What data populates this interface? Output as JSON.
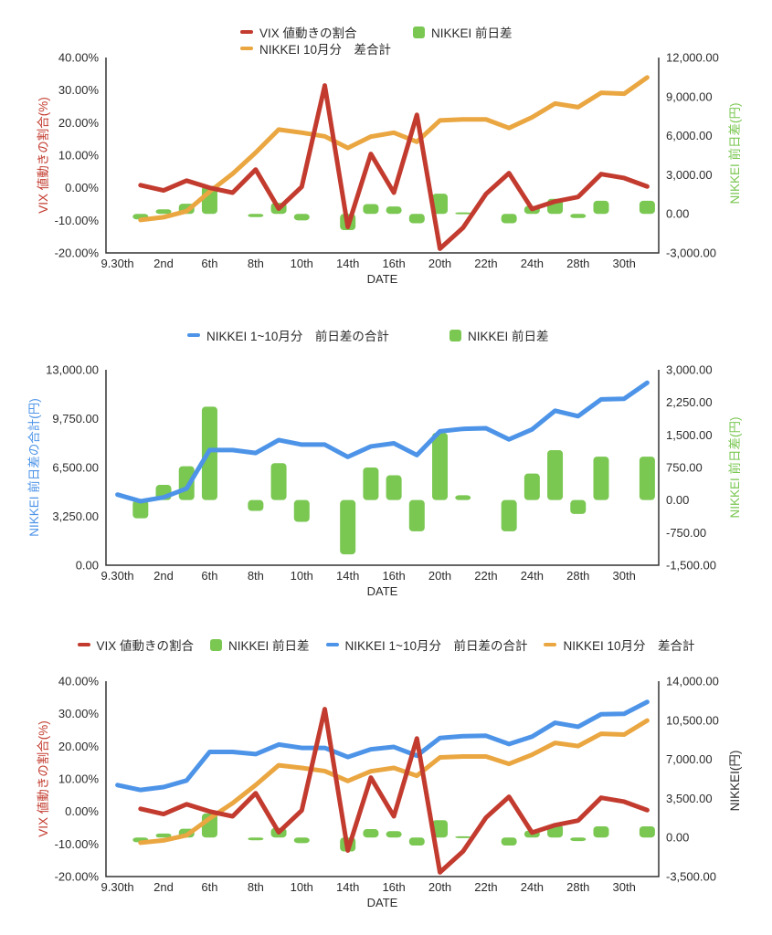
{
  "page": {
    "background": "#ffffff"
  },
  "colors": {
    "red": "#c23b2e",
    "orange": "#eaa640",
    "green": "#7ac752",
    "blue": "#4d94e8",
    "axis": "#333333",
    "text": "#2b2b2b"
  },
  "series_values": {
    "vix_pct": [
      null,
      0.8,
      -0.8,
      2.2,
      0,
      -1.5,
      5.6,
      -6.4,
      0.3,
      31.4,
      -12,
      10.4,
      -1.5,
      22.4,
      -18.7,
      -12.3,
      -1.9,
      4.5,
      -6.5,
      -4.2,
      -2.8,
      4.2,
      3,
      0.4
    ],
    "nikkei_daily_diff": [
      null,
      -420,
      350,
      780,
      2150,
      null,
      -250,
      850,
      -500,
      null,
      -1250,
      750,
      570,
      -720,
      1550,
      110,
      null,
      -720,
      610,
      1150,
      -320,
      1000,
      null,
      1000
    ],
    "nikkei_oct_cum": [
      null,
      -470,
      -260,
      200,
      1700,
      3080,
      4700,
      6470,
      6230,
      5950,
      5060,
      5930,
      6230,
      5530,
      7170,
      7250,
      7250,
      6590,
      7410,
      8470,
      8190,
      9290,
      9220,
      10470
    ],
    "nikkei_jan_oct_cum": [
      4695,
      4255,
      4515,
      5100,
      7660,
      7660,
      7465,
      8325,
      8025,
      8025,
      7205,
      7900,
      8110,
      7325,
      8910,
      9070,
      9110,
      8370,
      9030,
      10275,
      9915,
      11035,
      11075,
      12140
    ]
  },
  "chart_data": [
    {
      "type": "bar+line combo",
      "n_points": 24,
      "x_axis_title": "DATE",
      "x_labels": [
        "9.30th",
        "2nd",
        "6th",
        "8th",
        "10th",
        "14th",
        "16th",
        "20th",
        "22th",
        "24th",
        "28th",
        "30th"
      ],
      "x_label_every": 2,
      "plot": {
        "l": 116,
        "t": 63,
        "r": 721,
        "b": 277
      },
      "left_axis": {
        "label": "VIX 値動きの割合(%)",
        "color_key": "red",
        "max": 40,
        "min": -20,
        "ticks": [
          {
            "v": 40,
            "t": "40.00%"
          },
          {
            "v": 30,
            "t": "30.00%"
          },
          {
            "v": 20,
            "t": "20.00%"
          },
          {
            "v": 10,
            "t": "10.00%"
          },
          {
            "v": 0,
            "t": "0.00%"
          },
          {
            "v": -10,
            "t": "-10.00%"
          },
          {
            "v": -20,
            "t": "-20.00%"
          }
        ]
      },
      "right_axis": {
        "label": "NIKKEI 前日差(円)",
        "color_key": "green",
        "max": 12000,
        "min": -3000,
        "ticks": [
          {
            "v": 12000,
            "t": "12,000.00"
          },
          {
            "v": 9000,
            "t": "9,000.00"
          },
          {
            "v": 6000,
            "t": "6,000.00"
          },
          {
            "v": 3000,
            "t": "3,000.00"
          },
          {
            "v": 0,
            "t": "0.00"
          },
          {
            "v": -3000,
            "t": "-3,000.00"
          }
        ]
      },
      "series": [
        {
          "name": "NIKKEI 前日差",
          "type": "bar",
          "color": "green",
          "axis": "right",
          "values_key": "nikkei_daily_diff"
        },
        {
          "name": "NIKKEI 10月分　差合計",
          "type": "line",
          "color": "orange",
          "axis": "right",
          "values_key": "nikkei_oct_cum"
        },
        {
          "name": "VIX 値動きの割合",
          "type": "line",
          "color": "red",
          "axis": "left",
          "values_key": "vix_pct"
        }
      ]
    },
    {
      "type": "bar+line combo",
      "n_points": 24,
      "x_axis_title": "DATE",
      "x_labels": [
        "9.30th",
        "2nd",
        "6th",
        "8th",
        "10th",
        "14th",
        "16th",
        "20th",
        "22th",
        "24th",
        "28th",
        "30th"
      ],
      "x_label_every": 2,
      "plot": {
        "l": 116,
        "t": 405,
        "r": 721,
        "b": 619
      },
      "left_axis": {
        "label": "NIKKEI 前日差の合計(円)",
        "color_key": "blue",
        "max": 13000,
        "min": 0,
        "ticks": [
          {
            "v": 13000,
            "t": "13,000.00"
          },
          {
            "v": 9750,
            "t": "9,750.00"
          },
          {
            "v": 6500,
            "t": "6,500.00"
          },
          {
            "v": 3250,
            "t": "3,250.00"
          },
          {
            "v": 0,
            "t": "0.00"
          }
        ]
      },
      "right_axis": {
        "label": "NIKKEI 前日差(円)",
        "color_key": "green",
        "max": 3000,
        "min": -1500,
        "ticks": [
          {
            "v": 3000,
            "t": "3,000.00"
          },
          {
            "v": 2250,
            "t": "2,250.00"
          },
          {
            "v": 1500,
            "t": "1,500.00"
          },
          {
            "v": 750,
            "t": "750.00"
          },
          {
            "v": 0,
            "t": "0.00"
          },
          {
            "v": -750,
            "t": "-750.00"
          },
          {
            "v": -1500,
            "t": "-1,500.00"
          }
        ]
      },
      "series": [
        {
          "name": "NIKKEI 前日差",
          "type": "bar",
          "color": "green",
          "axis": "right",
          "values_key": "nikkei_daily_diff"
        },
        {
          "name": "NIKKEI 1~10月分　前日差の合計",
          "type": "line",
          "color": "blue",
          "axis": "left",
          "values_key": "nikkei_jan_oct_cum"
        }
      ]
    },
    {
      "type": "bar+line combo",
      "n_points": 24,
      "x_axis_title": "DATE",
      "x_labels": [
        "9.30th",
        "2nd",
        "6th",
        "8th",
        "10th",
        "14th",
        "16th",
        "20th",
        "22th",
        "24th",
        "28th",
        "30th"
      ],
      "x_label_every": 2,
      "plot": {
        "l": 116,
        "t": 746,
        "r": 721,
        "b": 960
      },
      "left_axis": {
        "label": "VIX 値動きの割合(%)",
        "color_key": "red",
        "max": 40,
        "min": -20,
        "ticks": [
          {
            "v": 40,
            "t": "40.00%"
          },
          {
            "v": 30,
            "t": "30.00%"
          },
          {
            "v": 20,
            "t": "20.00%"
          },
          {
            "v": 10,
            "t": "10.00%"
          },
          {
            "v": 0,
            "t": "0.00%"
          },
          {
            "v": -10,
            "t": "-10.00%"
          },
          {
            "v": -20,
            "t": "-20.00%"
          }
        ]
      },
      "right_axis": {
        "label": "NIKKEI(円)",
        "color_key": "text",
        "max": 14000,
        "min": -3500,
        "ticks": [
          {
            "v": 14000,
            "t": "14,000.00"
          },
          {
            "v": 10500,
            "t": "10,500.00"
          },
          {
            "v": 7000,
            "t": "7,000.00"
          },
          {
            "v": 3500,
            "t": "3,500.00"
          },
          {
            "v": 0,
            "t": "0.00"
          },
          {
            "v": -3500,
            "t": "-3,500.00"
          }
        ]
      },
      "series": [
        {
          "name": "NIKKEI 前日差",
          "type": "bar",
          "color": "green",
          "axis": "right",
          "values_key": "nikkei_daily_diff"
        },
        {
          "name": "NIKKEI 10月分　差合計",
          "type": "line",
          "color": "orange",
          "axis": "right",
          "values_key": "nikkei_oct_cum"
        },
        {
          "name": "NIKKEI 1~10月分　前日差の合計",
          "type": "line",
          "color": "blue",
          "axis": "right",
          "values_key": "nikkei_jan_oct_cum"
        },
        {
          "name": "VIX 値動きの割合",
          "type": "line",
          "color": "red",
          "axis": "left",
          "values_key": "vix_pct"
        }
      ]
    }
  ]
}
